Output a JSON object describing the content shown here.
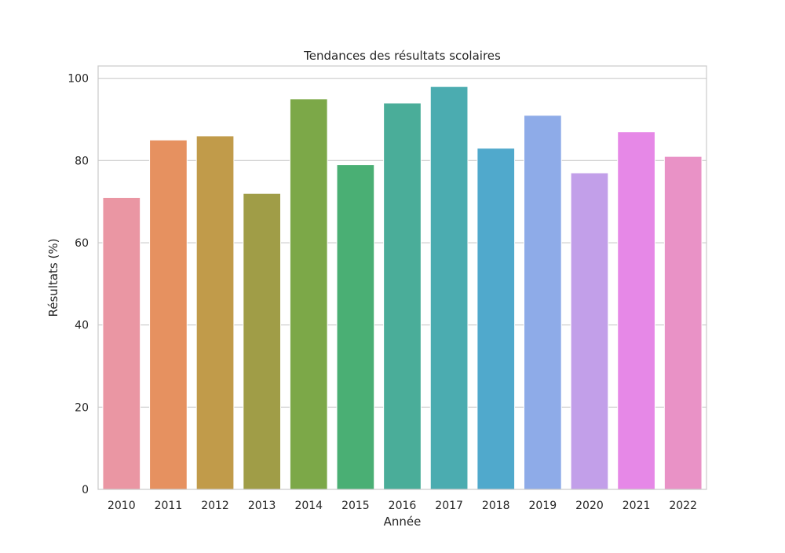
{
  "chart_data": {
    "type": "bar",
    "title": "Tendances des résultats scolaires",
    "xlabel": "Année",
    "ylabel": "Résultats (%)",
    "categories": [
      "2010",
      "2011",
      "2012",
      "2013",
      "2014",
      "2015",
      "2016",
      "2017",
      "2018",
      "2019",
      "2020",
      "2021",
      "2022"
    ],
    "values": [
      71,
      85,
      86,
      72,
      95,
      79,
      94,
      98,
      83,
      91,
      77,
      87,
      81
    ],
    "colors": [
      "#ea96a3",
      "#e69160",
      "#c19b4a",
      "#a09d47",
      "#7ca848",
      "#4aaf74",
      "#4aad99",
      "#4bacb0",
      "#50a9cc",
      "#8eabe8",
      "#c29fe9",
      "#e688e7",
      "#e992c6"
    ],
    "ylim": [
      0,
      103
    ],
    "yticks": [
      0,
      20,
      40,
      60,
      80,
      100
    ],
    "grid": true,
    "legend": "none"
  }
}
